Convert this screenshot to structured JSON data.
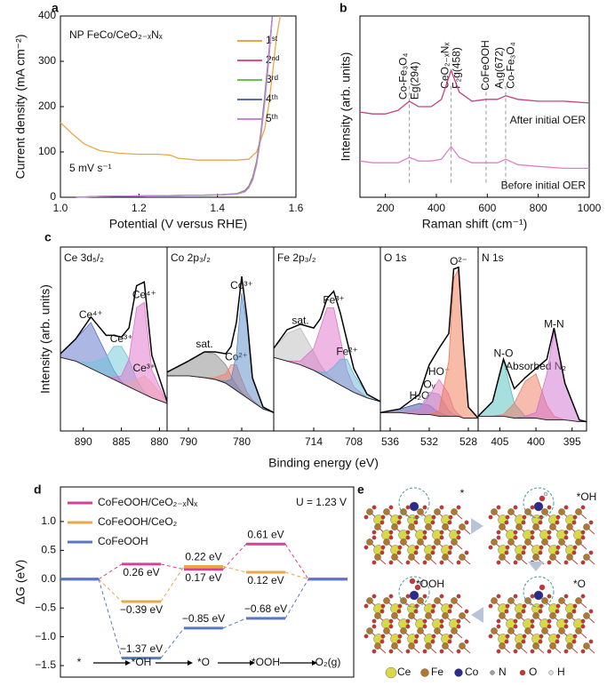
{
  "chart_data": [
    {
      "type": "line",
      "panel": "a",
      "title": "NP FeCo/CeO₂₋ₓNₓ",
      "note": "5 mV s⁻¹",
      "xlabel": "Potential (V versus RHE)",
      "ylabel": "Current density (mA cm⁻²)",
      "xlim": [
        1.0,
        1.6
      ],
      "xticks": [
        {
          "value": 1.0,
          "label": "1.0"
        },
        1.2,
        1.4,
        {
          "value": 1.6,
          "label": "1.6"
        }
      ],
      "ylim": [
        0,
        400
      ],
      "yticks": [
        0,
        100,
        200,
        300,
        400
      ],
      "legend": "upper right",
      "series": [
        {
          "name": "1ˢᵗ",
          "color": "#e8a84a",
          "x": [
            1.0,
            1.03,
            1.06,
            1.1,
            1.15,
            1.2,
            1.25,
            1.28,
            1.3,
            1.35,
            1.4,
            1.45,
            1.48,
            1.5,
            1.52,
            1.53,
            1.54,
            1.55,
            1.56
          ],
          "values": [
            165,
            140,
            118,
            103,
            97,
            95,
            95,
            93,
            86,
            82,
            82,
            82,
            84,
            100,
            150,
            200,
            270,
            350,
            400
          ]
        },
        {
          "name": "2ⁿᵈ",
          "color": "#e05080",
          "x": [
            1.04,
            1.1,
            1.2,
            1.3,
            1.4,
            1.45,
            1.47,
            1.48,
            1.49,
            1.5,
            1.51,
            1.52,
            1.53,
            1.54
          ],
          "values": [
            0,
            2,
            3,
            4,
            5,
            8,
            15,
            25,
            45,
            80,
            140,
            220,
            310,
            400
          ]
        },
        {
          "name": "3ʳᵈ",
          "color": "#6cbf4a",
          "x": [
            1.04,
            1.1,
            1.2,
            1.3,
            1.4,
            1.45,
            1.47,
            1.48,
            1.49,
            1.5,
            1.51,
            1.52,
            1.53,
            1.54
          ],
          "values": [
            0,
            2,
            3,
            4,
            5,
            8,
            14,
            24,
            43,
            78,
            137,
            216,
            305,
            400
          ]
        },
        {
          "name": "4ᵗʰ",
          "color": "#5a6ab0",
          "x": [
            1.04,
            1.1,
            1.2,
            1.3,
            1.4,
            1.45,
            1.47,
            1.48,
            1.49,
            1.5,
            1.51,
            1.52,
            1.53,
            1.54
          ],
          "values": [
            0,
            2,
            3,
            4,
            5,
            7,
            13,
            22,
            40,
            74,
            132,
            210,
            300,
            400
          ]
        },
        {
          "name": "5ᵗʰ",
          "color": "#c08ad8",
          "x": [
            1.04,
            1.1,
            1.2,
            1.3,
            1.4,
            1.45,
            1.47,
            1.48,
            1.49,
            1.5,
            1.51,
            1.52,
            1.53,
            1.54
          ],
          "values": [
            0,
            2,
            3,
            4,
            5,
            7,
            12,
            21,
            38,
            72,
            130,
            205,
            295,
            398
          ]
        }
      ]
    },
    {
      "type": "line",
      "panel": "b",
      "xlabel": "Raman shift (cm⁻¹)",
      "ylabel": "Intensity (arb. units)",
      "xlim": [
        100,
        1000
      ],
      "xticks": [
        200,
        400,
        600,
        800,
        1000
      ],
      "ylim": [
        0,
        100
      ],
      "legend": "inline",
      "x": [
        100,
        150,
        200,
        250,
        294,
        330,
        380,
        420,
        458,
        490,
        540,
        595,
        640,
        672,
        720,
        800,
        900,
        1000
      ],
      "series": [
        {
          "name": "After initial OER",
          "color": "#c8407f",
          "values": [
            47,
            46,
            46,
            48,
            53,
            50,
            50,
            54,
            70,
            58,
            53,
            54,
            54,
            56,
            54,
            53,
            53,
            52
          ]
        },
        {
          "name": "Before initial OER",
          "color": "#e080c8",
          "values": [
            20,
            19,
            19,
            19,
            22,
            20,
            20,
            21,
            28,
            22,
            19,
            19,
            19,
            21,
            18,
            17,
            16,
            16
          ]
        }
      ],
      "annotations": [
        {
          "lines": [
            "Co-Fe₃O₄",
            "Eg(294)"
          ],
          "x": 294
        },
        {
          "lines": [
            "CeO₂₋ₓNₓ",
            "F₂g(458)"
          ],
          "x": 458
        },
        {
          "lines": [
            "CoFeOOH"
          ],
          "x": 595
        },
        {
          "lines": [
            "A₁g(672)",
            "Co-Fe₃O₄"
          ],
          "x": 672
        }
      ]
    },
    {
      "type": "xps",
      "panel": "c",
      "xlabel": "Binding energy (eV)",
      "ylabel": "Intensity (arb. units)",
      "ylim": [
        0,
        100
      ],
      "panels": [
        {
          "title": "Ce 3d₅/₂",
          "xlim": [
            893,
            879
          ],
          "xticks": [
            890,
            885,
            880
          ],
          "x": [
            893,
            891,
            889,
            887,
            886,
            885,
            884,
            883,
            882,
            881,
            879
          ],
          "background": [
            40,
            38,
            34,
            30,
            28,
            26,
            24,
            22,
            20,
            18,
            15
          ],
          "envelope": [
            42,
            50,
            62,
            52,
            52,
            51,
            56,
            79,
            81,
            41,
            16
          ],
          "components": [
            {
              "name": "Ce⁴⁺",
              "color": "#5b6fc8",
              "values": [
                2,
                12,
                25,
                12,
                5,
                1,
                0,
                0,
                0,
                0,
                0
              ]
            },
            {
              "name": "Ce³⁺",
              "color": "#6cc6d8",
              "values": [
                0,
                0,
                3,
                10,
                18,
                20,
                15,
                6,
                1,
                0,
                0
              ]
            },
            {
              "name": "Ce⁴⁺",
              "color": "#e070c8",
              "values": [
                0,
                0,
                0,
                0,
                1,
                4,
                15,
                45,
                50,
                15,
                0
              ]
            },
            {
              "name": "Ce³⁺",
              "color": "#f0a0b0",
              "values": [
                0,
                0,
                0,
                0,
                0,
                0,
                2,
                6,
                10,
                8,
                1
              ]
            }
          ]
        },
        {
          "title": "Co 2p₃/₂",
          "xlim": [
            794,
            774
          ],
          "xticks": [
            790,
            780
          ],
          "x": [
            794,
            790,
            787,
            785,
            783,
            782,
            781,
            780,
            779,
            778,
            776,
            774
          ],
          "background": [
            30,
            30,
            29,
            28,
            26,
            24,
            22,
            20,
            18,
            16,
            12,
            10
          ],
          "envelope": [
            32,
            38,
            43,
            43,
            42,
            46,
            59,
            84,
            61,
            29,
            13,
            10
          ],
          "components": [
            {
              "name": "sat.",
              "color": "#888888",
              "values": [
                2,
                8,
                14,
                14,
                10,
                6,
                3,
                1,
                0,
                0,
                0,
                0
              ]
            },
            {
              "name": "Co²⁺",
              "color": "#f08070",
              "values": [
                0,
                0,
                0,
                1,
                5,
                12,
                14,
                8,
                3,
                1,
                0,
                0
              ]
            },
            {
              "name": "Co³⁺",
              "color": "#5a8ac8",
              "values": [
                0,
                0,
                0,
                0,
                1,
                4,
                20,
                55,
                40,
                12,
                1,
                0
              ]
            }
          ]
        },
        {
          "title": "Fe 2p₃/₂",
          "xlim": [
            720,
            704
          ],
          "xticks": [
            714,
            708
          ],
          "x": [
            720,
            718,
            716,
            714,
            713,
            712,
            711,
            710,
            709,
            708,
            706,
            704
          ],
          "background": [
            40,
            38,
            36,
            33,
            31,
            29,
            27,
            25,
            23,
            21,
            18,
            16
          ],
          "envelope": [
            45,
            55,
            58,
            56,
            61,
            72,
            76,
            64,
            49,
            34,
            20,
            16
          ],
          "components": [
            {
              "name": "sat.",
              "color": "#bbbbbb",
              "values": [
                5,
                15,
                20,
                10,
                5,
                2,
                1,
                0,
                0,
                0,
                0,
                0
              ]
            },
            {
              "name": "Fe³⁺",
              "color": "#e070c8",
              "values": [
                0,
                0,
                2,
                12,
                25,
                38,
                40,
                25,
                10,
                3,
                0,
                0
              ]
            },
            {
              "name": "Fe²⁺",
              "color": "#60b8d8",
              "values": [
                0,
                0,
                0,
                0,
                1,
                3,
                8,
                14,
                16,
                10,
                2,
                0
              ]
            }
          ]
        },
        {
          "title": "O 1s",
          "xlim": [
            537,
            527
          ],
          "xticks": [
            536,
            532,
            528
          ],
          "x": [
            537,
            535,
            533,
            532,
            531,
            530,
            529.5,
            529,
            528.5,
            528,
            527
          ],
          "background": [
            10,
            10,
            9,
            9,
            8,
            8,
            8,
            8,
            7,
            7,
            7
          ],
          "envelope": [
            10,
            12,
            20,
            36,
            45,
            53,
            88,
            89,
            47,
            13,
            7
          ],
          "components": [
            {
              "name": "H₂O",
              "color": "#3a4aa0",
              "values": [
                0,
                2,
                6,
                5,
                2,
                0,
                0,
                0,
                0,
                0,
                0
              ]
            },
            {
              "name": "Oᵥ",
              "color": "#a090d8",
              "values": [
                0,
                0,
                3,
                12,
                12,
                3,
                1,
                0,
                0,
                0,
                0
              ]
            },
            {
              "name": "HO⁻",
              "color": "#e080c0",
              "values": [
                0,
                0,
                2,
                10,
                20,
                12,
                4,
                1,
                0,
                0,
                0
              ]
            },
            {
              "name": "O²⁻",
              "color": "#f07850",
              "values": [
                0,
                0,
                0,
                0,
                3,
                30,
                75,
                80,
                40,
                6,
                0
              ]
            }
          ]
        },
        {
          "title": "N 1s",
          "xlim": [
            408,
            393
          ],
          "xticks": [
            405,
            400,
            395
          ],
          "x": [
            408,
            406,
            404.5,
            403,
            401.5,
            400,
            398.5,
            397.5,
            396,
            394,
            393
          ],
          "background": [
            8,
            8,
            8,
            7,
            7,
            7,
            6,
            6,
            6,
            5,
            5
          ],
          "envelope": [
            8,
            16,
            39,
            23,
            29,
            34,
            39,
            56,
            26,
            6,
            5
          ],
          "components": [
            {
              "name": "N-O",
              "color": "#50c0c0",
              "values": [
                0,
                8,
                30,
                8,
                1,
                0,
                0,
                0,
                0,
                0,
                0
              ]
            },
            {
              "name": "Absorbed N₂",
              "color": "#f07860",
              "values": [
                0,
                0,
                1,
                8,
                20,
                24,
                8,
                2,
                0,
                0,
                0
              ]
            },
            {
              "name": "M-N",
              "color": "#d070d0",
              "values": [
                0,
                0,
                0,
                0,
                1,
                3,
                25,
                48,
                20,
                1,
                0
              ]
            }
          ]
        }
      ]
    },
    {
      "type": "energy",
      "panel": "d",
      "ylabel": "ΔG (eV)",
      "annotation": "U = 1.23 V",
      "categories": [
        "*",
        "*OH",
        "*O",
        "*OOH",
        "O₂(g)"
      ],
      "ylim": [
        -1.7,
        1.6
      ],
      "yticks": [
        {
          "value": -1.5,
          "label": "−1.5"
        },
        {
          "value": -1.0,
          "label": "−1.0"
        },
        {
          "value": -0.5,
          "label": "−0.5"
        },
        {
          "value": 0,
          "label": "0.0"
        },
        0.5,
        {
          "value": 1.0,
          "label": "1.0"
        }
      ],
      "series": [
        {
          "name": "CoFeOOH/CeO₂₋ₓNₓ",
          "color": "#d6409a",
          "values": [
            0,
            0.26,
            0.17,
            0.61,
            0
          ],
          "value_labels": [
            null,
            "0.26 eV",
            "0.17 eV",
            "0.61 eV",
            null
          ]
        },
        {
          "name": "CoFeOOH/CeO₂",
          "color": "#e8a84a",
          "values": [
            0,
            -0.39,
            0.22,
            0.12,
            0
          ],
          "value_labels": [
            null,
            "−0.39 eV",
            "0.22 eV",
            "0.12 eV",
            null
          ]
        },
        {
          "name": "CoFeOOH",
          "color": "#5a78c0",
          "values": [
            0,
            -1.37,
            -0.85,
            -0.68,
            0
          ],
          "value_labels": [
            null,
            "−1.37 eV",
            "−0.85 eV",
            "−0.68 eV",
            null
          ]
        }
      ]
    }
  ],
  "figure_e": {
    "panel": "e",
    "labels": [
      "*",
      "*OH",
      "*OOH",
      "*O"
    ],
    "legend": [
      "Ce",
      "Fe",
      "Co",
      "N",
      "O",
      "H"
    ]
  }
}
